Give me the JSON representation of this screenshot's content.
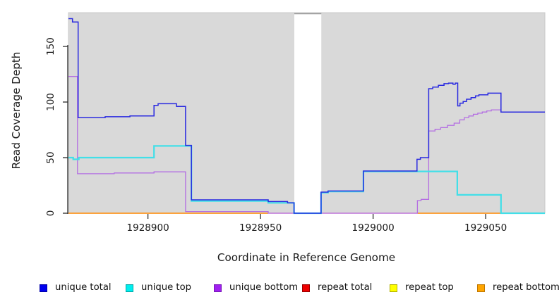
{
  "figure": {
    "page_background": "#ffffff",
    "plot_background": "#d9d9d9",
    "plot_border_color": "#c9c9c9",
    "axis_color": "#2b2b2b",
    "masked_region_cap_color": "#9a9a9a"
  },
  "chart_data": {
    "type": "line",
    "title": "",
    "xlabel": "Coordinate in Reference Genome",
    "ylabel": "Read Coverage Depth",
    "xlim": [
      1928864.7,
      1929076.3
    ],
    "ylim": [
      0,
      180
    ],
    "x_ticks": [
      1928900,
      1928950,
      1929000,
      1929050
    ],
    "y_ticks": [
      0,
      50,
      100,
      150
    ],
    "grid": false,
    "legend_position": "bottom",
    "masked_region": {
      "from": 1928965,
      "to": 1928977
    },
    "series": [
      {
        "name": "repeat total",
        "draw_color": "#e65f82",
        "width": 1.2,
        "runs": [
          [
            [
              1928864.7,
              0
            ],
            [
              1929076.3,
              0
            ]
          ]
        ]
      },
      {
        "name": "repeat top",
        "draw_color": "#9fd6a0",
        "width": 1.5,
        "runs": [
          [
            [
              1929056.8,
              0
            ],
            [
              1929076.3,
              0
            ]
          ]
        ]
      },
      {
        "name": "repeat bottom",
        "draw_color": "#ff9408",
        "width": 1.5,
        "runs": [
          [
            [
              1928864.7,
              0
            ],
            [
              1928953.4,
              0
            ]
          ],
          [
            [
              1929019.7,
              0
            ],
            [
              1929056.8,
              0
            ]
          ]
        ]
      },
      {
        "name": "unique bottom",
        "draw_color": "#b46fe2",
        "width": 1.3,
        "runs": [
          [
            [
              1928864.7,
              123
            ],
            [
              1928868.7,
              35.5
            ],
            [
              1928885,
              36.2
            ],
            [
              1928902.7,
              37.2
            ],
            [
              1928916.7,
              1.5
            ],
            [
              1928953.4,
              0
            ],
            [
              1929019.7,
              11.4
            ],
            [
              1929021.3,
              12.5
            ],
            [
              1929024.7,
              74
            ],
            [
              1929027.5,
              75.5
            ],
            [
              1929030,
              77
            ],
            [
              1929033,
              79
            ],
            [
              1929036,
              81
            ],
            [
              1929038.5,
              84
            ],
            [
              1929040.5,
              86
            ],
            [
              1929042.5,
              87.5
            ],
            [
              1929044.5,
              89
            ],
            [
              1929046.5,
              90
            ],
            [
              1929048.5,
              91
            ],
            [
              1929050.5,
              92
            ],
            [
              1929052.5,
              93
            ],
            [
              1929056.8,
              91
            ],
            [
              1929076.3,
              91
            ]
          ]
        ]
      },
      {
        "name": "unique top",
        "draw_color": "#42dfe8",
        "width": 2.2,
        "runs": [
          [
            [
              1928864.7,
              50
            ],
            [
              1928866.8,
              48.5
            ],
            [
              1928869.3,
              50
            ],
            [
              1928902.7,
              60.5
            ],
            [
              1928919.3,
              11
            ],
            [
              1928953.4,
              9.3
            ],
            [
              1928964.9,
              0
            ],
            [
              1928976.9,
              18.5
            ],
            [
              1928980,
              19.5
            ],
            [
              1928995.7,
              37.6
            ],
            [
              1929037.4,
              16.5
            ],
            [
              1929056.8,
              0
            ],
            [
              1929076.3,
              0
            ]
          ]
        ]
      },
      {
        "name": "unique total",
        "draw_color": "#2a2ae0",
        "width": 1.5,
        "runs": [
          [
            [
              1928864.7,
              175
            ],
            [
              1928866.5,
              172
            ],
            [
              1928869,
              86
            ],
            [
              1928881,
              86.8
            ],
            [
              1928892,
              87.5
            ],
            [
              1928902.7,
              97
            ],
            [
              1928904.5,
              98.5
            ],
            [
              1928912.7,
              96
            ],
            [
              1928916.7,
              61
            ],
            [
              1928919.3,
              12
            ],
            [
              1928953.4,
              10.5
            ],
            [
              1928962,
              9.3
            ],
            [
              1928964.9,
              0
            ],
            [
              1928976.9,
              19
            ],
            [
              1928980,
              20
            ],
            [
              1928995.7,
              38
            ],
            [
              1929019.5,
              48.5
            ],
            [
              1929021,
              50
            ],
            [
              1929024.7,
              112
            ],
            [
              1929026.5,
              113.5
            ],
            [
              1929029,
              115
            ],
            [
              1929031.5,
              116.5
            ],
            [
              1929033.5,
              117
            ],
            [
              1929035.5,
              116
            ],
            [
              1929036.5,
              117
            ],
            [
              1929037.6,
              96.5
            ],
            [
              1929038.6,
              99
            ],
            [
              1929040,
              100.5
            ],
            [
              1929041.5,
              102.5
            ],
            [
              1929043.5,
              104
            ],
            [
              1929045.5,
              105.5
            ],
            [
              1929047,
              106.5
            ],
            [
              1929051,
              108
            ],
            [
              1929056.8,
              91
            ],
            [
              1929076.3,
              91
            ]
          ]
        ]
      }
    ]
  },
  "legend": {
    "items": [
      {
        "label": "unique total",
        "fill": "#0000ee",
        "border": "#0000a8"
      },
      {
        "label": "unique top",
        "fill": "#00eeee",
        "border": "#00a8a8"
      },
      {
        "label": "unique bottom",
        "fill": "#a020f0",
        "border": "#7a18b8"
      },
      {
        "label": "repeat total",
        "fill": "#ee0000",
        "border": "#990000"
      },
      {
        "label": "repeat top",
        "fill": "#ffff00",
        "border": "#b0b000"
      },
      {
        "label": "repeat bottom",
        "fill": "#ffa500",
        "border": "#c07800"
      }
    ]
  }
}
